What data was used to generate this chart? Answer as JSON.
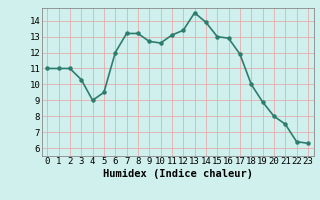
{
  "x": [
    0,
    1,
    2,
    3,
    4,
    5,
    6,
    7,
    8,
    9,
    10,
    11,
    12,
    13,
    14,
    15,
    16,
    17,
    18,
    19,
    20,
    21,
    22,
    23
  ],
  "y": [
    11,
    11,
    11,
    10.3,
    9,
    9.5,
    12,
    13.2,
    13.2,
    12.7,
    12.6,
    13.1,
    13.4,
    14.5,
    13.9,
    13,
    12.9,
    11.9,
    10,
    8.9,
    8,
    7.5,
    6.4,
    6.3
  ],
  "line_color": "#2d7d6e",
  "marker": "o",
  "marker_size": 2.2,
  "line_width": 1.2,
  "bg_color": "#cff0ec",
  "grid_color": "#e8a0a0",
  "xlabel": "Humidex (Indice chaleur)",
  "xlim": [
    -0.5,
    23.5
  ],
  "ylim": [
    5.5,
    14.8
  ],
  "yticks": [
    6,
    7,
    8,
    9,
    10,
    11,
    12,
    13,
    14
  ],
  "xticks": [
    0,
    1,
    2,
    3,
    4,
    5,
    6,
    7,
    8,
    9,
    10,
    11,
    12,
    13,
    14,
    15,
    16,
    17,
    18,
    19,
    20,
    21,
    22,
    23
  ],
  "xlabel_fontsize": 7.5,
  "tick_fontsize": 6.5
}
